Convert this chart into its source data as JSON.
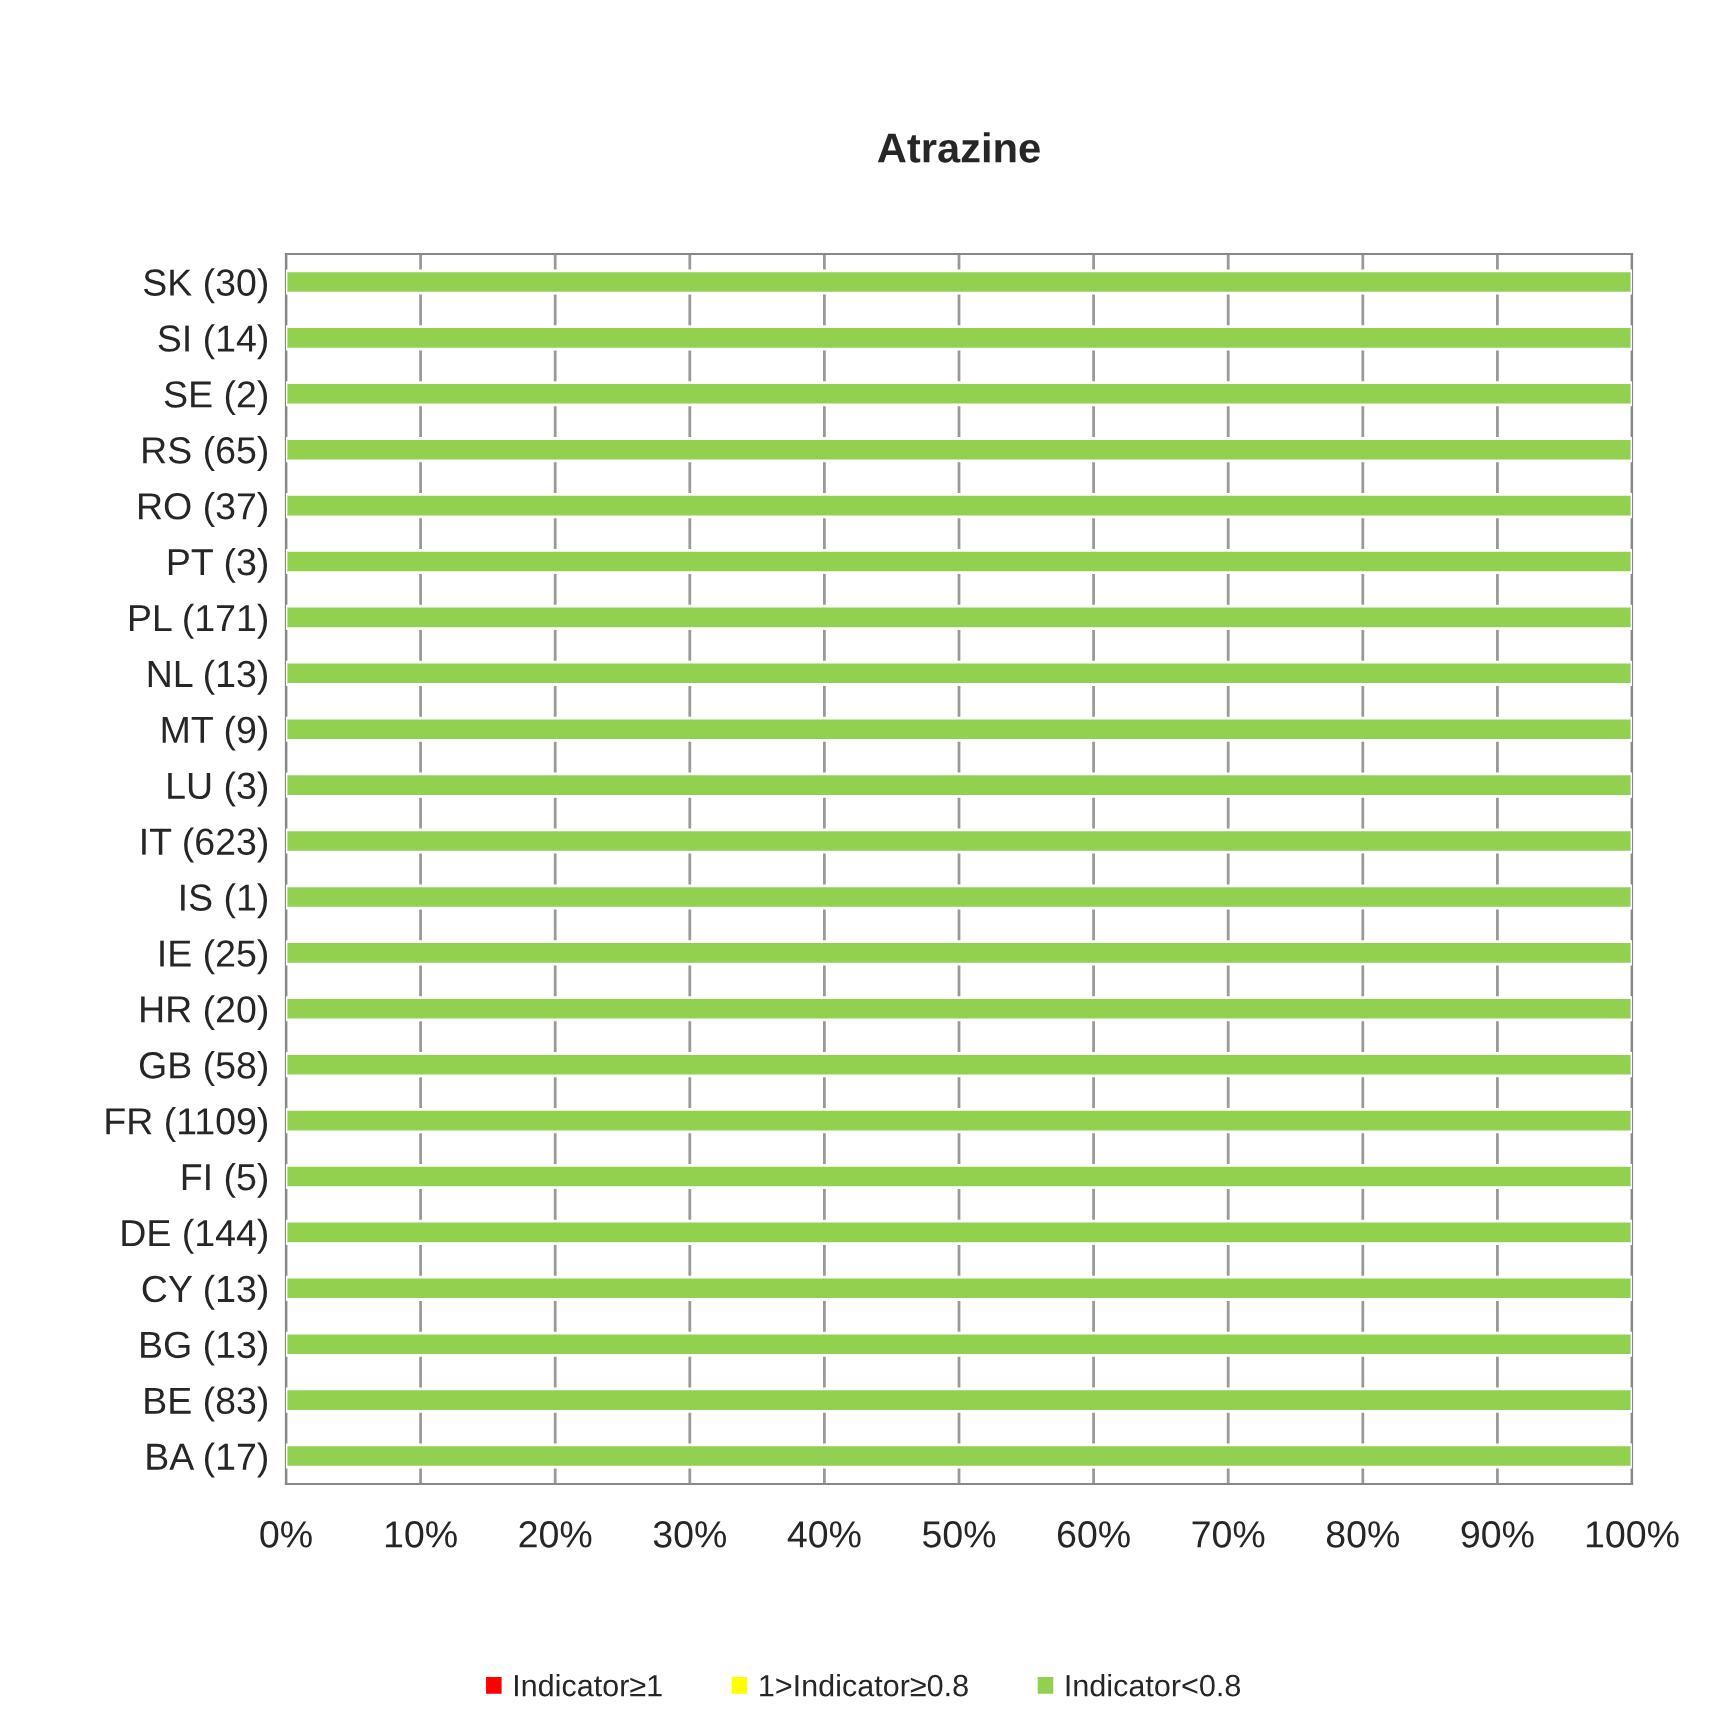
{
  "chart_data": {
    "type": "bar",
    "orientation": "horizontal",
    "stacked": true,
    "title": "Atrazine",
    "categories": [
      "SK (30)",
      "SI (14)",
      "SE (2)",
      "RS (65)",
      "RO (37)",
      "PT (3)",
      "PL (171)",
      "NL (13)",
      "MT (9)",
      "LU (3)",
      "IT (623)",
      "IS (1)",
      "IE (25)",
      "HR (20)",
      "GB (58)",
      "FR (1109)",
      "FI (5)",
      "DE (144)",
      "CY (13)",
      "BG (13)",
      "BE (83)",
      "BA (17)"
    ],
    "series": [
      {
        "name": "Indicator≥1",
        "color": "#ff0000",
        "values": [
          0,
          0,
          0,
          0,
          0,
          0,
          0,
          0,
          0,
          0,
          0,
          0,
          0,
          0,
          0,
          0,
          0,
          0,
          0,
          0,
          0,
          0
        ]
      },
      {
        "name": "1>Indicator≥0.8",
        "color": "#ffff00",
        "values": [
          0,
          0,
          0,
          0,
          0,
          0,
          0,
          0,
          0,
          0,
          0,
          0,
          0,
          0,
          0,
          0,
          0,
          0,
          0,
          0,
          0,
          0
        ]
      },
      {
        "name": "Indicator<0.8",
        "color": "#92d050",
        "values": [
          100,
          100,
          100,
          100,
          100,
          100,
          100,
          100,
          100,
          100,
          100,
          100,
          100,
          100,
          100,
          100,
          100,
          100,
          100,
          100,
          100,
          100
        ]
      }
    ],
    "xlim": [
      0,
      100
    ],
    "xticks": [
      {
        "value": 0,
        "label": "0%"
      },
      {
        "value": 10,
        "label": "10%"
      },
      {
        "value": 20,
        "label": "20%"
      },
      {
        "value": 30,
        "label": "30%"
      },
      {
        "value": 40,
        "label": "40%"
      },
      {
        "value": 50,
        "label": "50%"
      },
      {
        "value": 60,
        "label": "60%"
      },
      {
        "value": 70,
        "label": "70%"
      },
      {
        "value": 80,
        "label": "80%"
      },
      {
        "value": 90,
        "label": "90%"
      },
      {
        "value": 100,
        "label": "100%"
      }
    ],
    "grid": "x",
    "legend": "bottom"
  }
}
